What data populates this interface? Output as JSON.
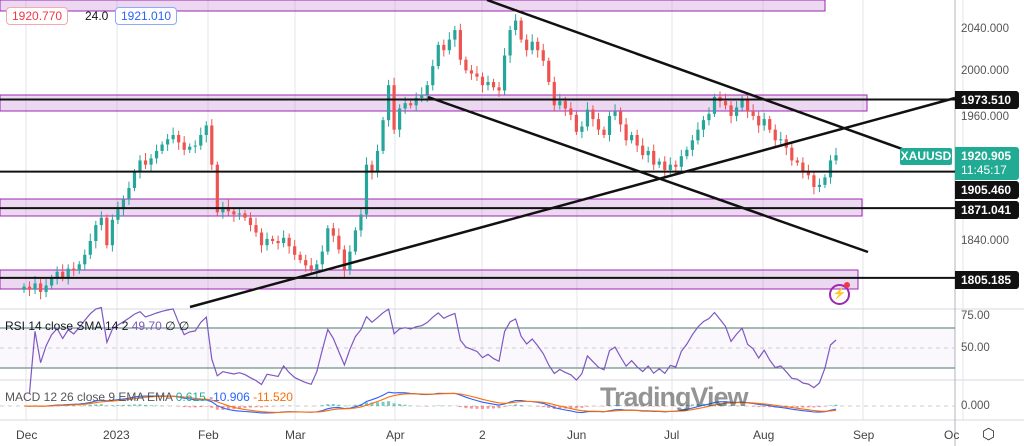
{
  "header": {
    "bid": "1920.770",
    "spread": "24.0",
    "ask": "1921.010",
    "bid_color": "#f23645",
    "ask_color": "#2962ff"
  },
  "symbol": "XAUUSD",
  "last_price": "1920.905",
  "countdown": "11:45:17",
  "price_axis": [
    "2040.000",
    "2000.000",
    "1960.000",
    "1840.000"
  ],
  "levels": [
    {
      "label": "1973.510",
      "price": 1973.51
    },
    {
      "label": "1905.460",
      "price": 1905.46
    },
    {
      "label": "1871.041",
      "price": 1871.041
    },
    {
      "label": "1805.185",
      "price": 1805.185
    }
  ],
  "rsi": {
    "legend_name": "RSI 14 close SMA 14 2",
    "value": "49.70",
    "extra": "∅ ∅",
    "axis": [
      "75.00",
      "50.00"
    ],
    "color": "#7e57c2"
  },
  "macd": {
    "legend_name": "MACD 12 26 close 9 EMA EMA",
    "hist": "0.615",
    "macd": "-10.906",
    "signal": "-11.520",
    "axis": [
      "0.000"
    ],
    "macd_color": "#2962ff",
    "signal_color": "#ff6d00"
  },
  "time_axis": [
    "Dec",
    "2023",
    "Feb",
    "Mar",
    "Apr",
    "2",
    "Jun",
    "Jul",
    "Aug",
    "Sep",
    "Oc"
  ],
  "watermark": "TradingView",
  "colors": {
    "up": "#26a69a",
    "down": "#ef5350",
    "zone": "#9c27b0",
    "accent": "#22ab94"
  },
  "chart_data": {
    "type": "candlestick",
    "ylim": [
      1785,
      2070
    ],
    "closes": [
      1797,
      1794,
      1800,
      1792,
      1798,
      1805,
      1811,
      1806,
      1814,
      1812,
      1818,
      1827,
      1840,
      1855,
      1862,
      1836,
      1860,
      1870,
      1879,
      1890,
      1905,
      1916,
      1912,
      1918,
      1925,
      1931,
      1936,
      1940,
      1933,
      1926,
      1929,
      1930,
      1940,
      1949,
      1912,
      1867,
      1872,
      1868,
      1865,
      1866,
      1862,
      1855,
      1848,
      1836,
      1842,
      1840,
      1838,
      1843,
      1835,
      1827,
      1822,
      1817,
      1813,
      1818,
      1830,
      1852,
      1845,
      1832,
      1813,
      1830,
      1850,
      1865,
      1912,
      1905,
      1925,
      1954,
      1987,
      1945,
      1965,
      1970,
      1968,
      1975,
      1978,
      1987,
      2005,
      2025,
      2020,
      2030,
      2039,
      2011,
      2001,
      1998,
      1995,
      1987,
      1990,
      1985,
      1982,
      2015,
      2039,
      2048,
      2030,
      2020,
      2028,
      2020,
      2010,
      1990,
      1968,
      1972,
      1965,
      1959,
      1943,
      1948,
      1964,
      1955,
      1945,
      1940,
      1958,
      1962,
      1950,
      1935,
      1940,
      1930,
      1921,
      1925,
      1912,
      1915,
      1907,
      1912,
      1910,
      1920,
      1926,
      1935,
      1945,
      1954,
      1960,
      1976,
      1972,
      1968,
      1958,
      1966,
      1974,
      1962,
      1958,
      1949,
      1955,
      1945,
      1935,
      1936,
      1928,
      1916,
      1914,
      1905,
      1902,
      1891,
      1893,
      1900,
      1916,
      1920.905
    ]
  }
}
